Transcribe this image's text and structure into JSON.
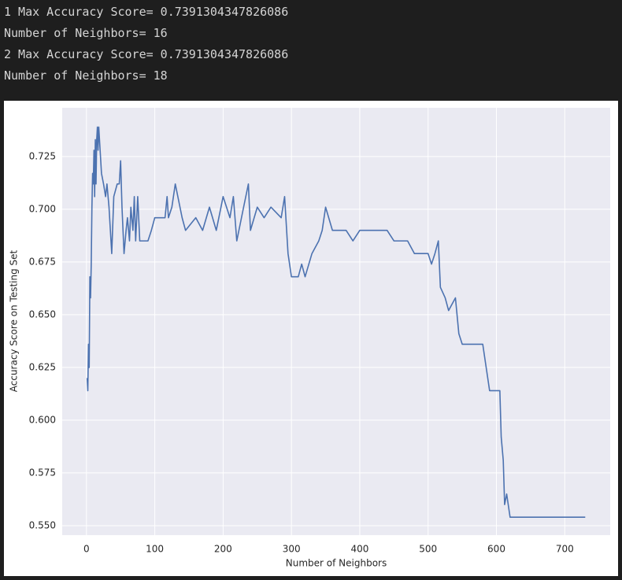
{
  "output_lines": [
    "1 Max Accuracy Score= 0.7391304347826086",
    "Number of Neighbors= 16",
    "2 Max Accuracy Score= 0.7391304347826086",
    "Number of Neighbors= 18"
  ],
  "chart_data": {
    "type": "line",
    "x_label": "Number of Neighbors",
    "y_label": "Accuracy Score on Testing Set",
    "xlim": [
      -35.5,
      766.5
    ],
    "ylim": [
      0.5455,
      0.7481
    ],
    "xticks": [
      0,
      100,
      200,
      300,
      400,
      500,
      600,
      700
    ],
    "yticks": [
      {
        "value": 0.55,
        "label": "0.550"
      },
      0.575,
      {
        "value": 0.6,
        "label": "0.600"
      },
      0.625,
      {
        "value": 0.65,
        "label": "0.650"
      },
      0.675,
      {
        "value": 0.7,
        "label": "0.700"
      },
      0.725
    ],
    "grid": true,
    "color": "#4c72b0",
    "x": [
      1,
      2,
      3,
      4,
      5,
      6,
      7,
      8,
      9,
      10,
      11,
      12,
      13,
      14,
      15,
      16,
      17,
      18,
      20,
      22,
      25,
      28,
      30,
      33,
      35,
      37,
      40,
      45,
      48,
      50,
      52,
      55,
      58,
      60,
      63,
      65,
      68,
      70,
      72,
      75,
      78,
      90,
      95,
      100,
      115,
      118,
      120,
      125,
      130,
      140,
      145,
      160,
      170,
      180,
      190,
      200,
      210,
      215,
      220,
      230,
      237,
      240,
      250,
      260,
      270,
      285,
      290,
      295,
      300,
      310,
      315,
      320,
      330,
      340,
      345,
      350,
      360,
      380,
      390,
      400,
      440,
      450,
      470,
      480,
      500,
      505,
      510,
      515,
      518,
      525,
      530,
      540,
      545,
      550,
      560,
      580,
      585,
      590,
      605,
      607,
      610,
      612,
      615,
      620,
      730
    ],
    "values": [
      0.62,
      0.614,
      0.636,
      0.625,
      0.668,
      0.658,
      0.674,
      0.701,
      0.717,
      0.712,
      0.728,
      0.706,
      0.733,
      0.712,
      0.733,
      0.739,
      0.728,
      0.739,
      0.728,
      0.717,
      0.712,
      0.706,
      0.712,
      0.701,
      0.69,
      0.679,
      0.706,
      0.712,
      0.712,
      0.723,
      0.701,
      0.679,
      0.69,
      0.696,
      0.685,
      0.701,
      0.69,
      0.706,
      0.685,
      0.706,
      0.685,
      0.685,
      0.69,
      0.696,
      0.696,
      0.706,
      0.696,
      0.701,
      0.712,
      0.696,
      0.69,
      0.696,
      0.69,
      0.701,
      0.69,
      0.706,
      0.696,
      0.706,
      0.685,
      0.701,
      0.712,
      0.69,
      0.701,
      0.696,
      0.701,
      0.696,
      0.706,
      0.679,
      0.668,
      0.668,
      0.674,
      0.668,
      0.679,
      0.685,
      0.69,
      0.701,
      0.69,
      0.69,
      0.685,
      0.69,
      0.69,
      0.685,
      0.685,
      0.679,
      0.679,
      0.674,
      0.679,
      0.685,
      0.663,
      0.658,
      0.652,
      0.658,
      0.641,
      0.636,
      0.636,
      0.636,
      0.625,
      0.614,
      0.614,
      0.592,
      0.581,
      0.56,
      0.565,
      0.554,
      0.554
    ]
  }
}
